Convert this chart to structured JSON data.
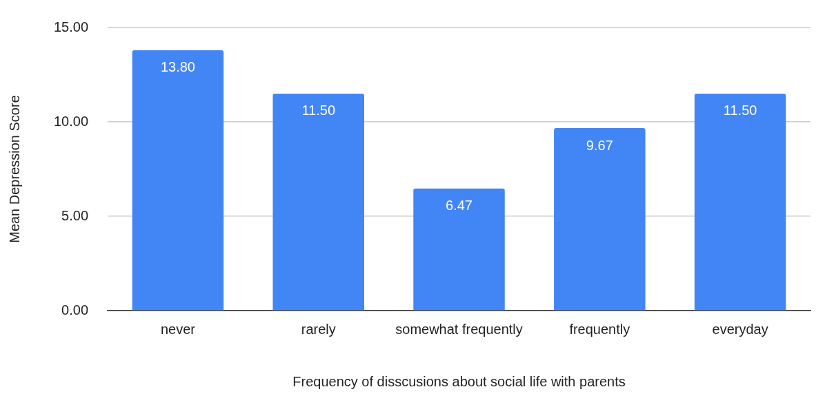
{
  "chart_data": {
    "type": "bar",
    "xlabel": "Frequency of disscusions about social life with parents",
    "ylabel": "Mean Depression Score",
    "categories": [
      "never",
      "rarely",
      "somewhat frequently",
      "frequently",
      "everyday"
    ],
    "values": [
      13.8,
      11.5,
      6.47,
      9.67,
      11.5
    ],
    "value_labels": [
      "13.80",
      "11.50",
      "6.47",
      "9.67",
      "11.50"
    ],
    "color": "#4285f4",
    "ylim": [
      0,
      15
    ],
    "yticks": [
      {
        "value": 0,
        "label": "0.00"
      },
      {
        "value": 5,
        "label": "5.00"
      },
      {
        "value": 10,
        "label": "10.00"
      },
      {
        "value": 15,
        "label": "15.00"
      }
    ],
    "grid": "y",
    "legend": false
  }
}
